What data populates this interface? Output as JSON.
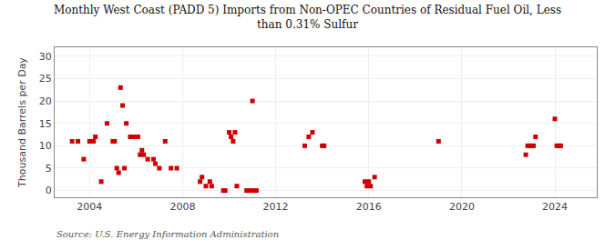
{
  "chart_data": {
    "type": "scatter",
    "title": "Monthly West Coast (PADD 5) Imports from Non-OPEC Countries of Residual Fuel Oil, Less\nthan 0.31% Sulfur",
    "ylabel": "Thousand Barrels per Day",
    "annotations": [
      "Source: U.S. Energy Information Administration"
    ],
    "color": "#cc0000",
    "marker": "square",
    "grid": true,
    "xlim": [
      2002.5,
      2025.8
    ],
    "ylim": [
      -1.5,
      32
    ],
    "xticks": [
      2004,
      2008,
      2012,
      2016,
      2020,
      2024
    ],
    "yticks": [
      0,
      5,
      10,
      15,
      20,
      25,
      30
    ],
    "x": [
      2003.25,
      2003.5,
      2003.75,
      2004.0,
      2004.08,
      2004.17,
      2004.25,
      2004.5,
      2004.75,
      2005.0,
      2005.08,
      2005.17,
      2005.25,
      2005.33,
      2005.42,
      2005.5,
      2005.58,
      2005.75,
      2005.83,
      2006.0,
      2006.08,
      2006.17,
      2006.25,
      2006.33,
      2006.5,
      2006.75,
      2006.83,
      2007.0,
      2007.25,
      2007.5,
      2007.75,
      2008.75,
      2008.83,
      2009.0,
      2009.17,
      2009.25,
      2009.75,
      2009.83,
      2010.0,
      2010.08,
      2010.17,
      2010.25,
      2010.33,
      2010.75,
      2010.83,
      2010.92,
      2011.0,
      2011.08,
      2011.17,
      2013.25,
      2013.42,
      2013.58,
      2014.0,
      2014.08,
      2015.83,
      2015.92,
      2016.0,
      2016.08,
      2016.25,
      2019.0,
      2022.75,
      2022.83,
      2022.92,
      2023.0,
      2023.08,
      2023.17,
      2024.0,
      2024.08,
      2024.17,
      2024.25
    ],
    "values": [
      11,
      11,
      7,
      11,
      11,
      11,
      12,
      2,
      15,
      11,
      11,
      5,
      4,
      23,
      19,
      5,
      15,
      12,
      12,
      12,
      12,
      8,
      9,
      8,
      7,
      7,
      6,
      5,
      11,
      5,
      5,
      2,
      3,
      1,
      2,
      1,
      0,
      0,
      13,
      12,
      11,
      13,
      1,
      0,
      0,
      0,
      20,
      0,
      0,
      10,
      12,
      13,
      10,
      10,
      2,
      1,
      2,
      1,
      3,
      11,
      8,
      10,
      10,
      10,
      10,
      12,
      16,
      10,
      10,
      10
    ]
  }
}
